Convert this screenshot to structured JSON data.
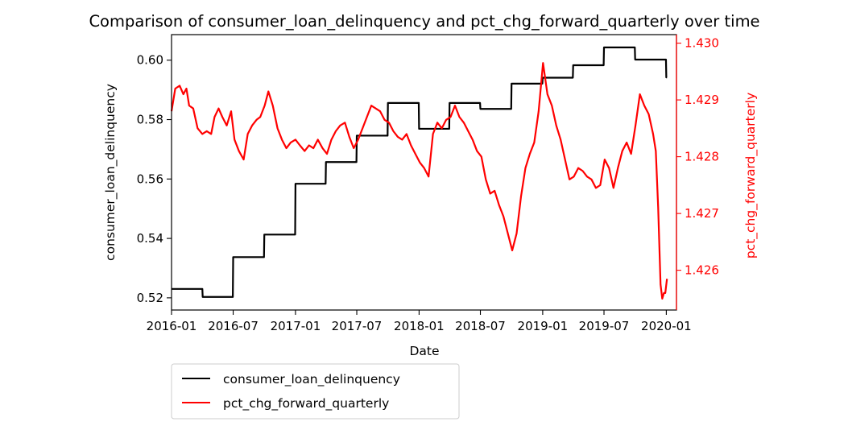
{
  "chart_data": {
    "type": "line",
    "title": "Comparison of consumer_loan_delinquency and pct_chg_forward_quarterly over time",
    "xlabel": "Date",
    "xlim": [
      "2016-01-01",
      "2020-01-31"
    ],
    "x_ticks": [
      "2016-01",
      "2016-07",
      "2017-01",
      "2017-07",
      "2018-01",
      "2018-07",
      "2019-01",
      "2019-07",
      "2020-01"
    ],
    "y_left": {
      "label": "consumer_loan_delinquency",
      "ylim": [
        0.5159,
        0.6086
      ],
      "ticks": [
        "0.52",
        "0.54",
        "0.56",
        "0.58",
        "0.60"
      ],
      "color": "#000000"
    },
    "y_right": {
      "label": "pct_chg_forward_quarterly",
      "ylim": [
        1.4253,
        1.43015
      ],
      "ticks": [
        "1.426",
        "1.427",
        "1.428",
        "1.429",
        "1.430"
      ],
      "color": "#ff0000"
    },
    "legend": {
      "placement": "below-left"
    },
    "series": [
      {
        "name": "consumer_loan_delinquency",
        "axis": "left",
        "color": "#000000",
        "points": [
          [
            "2016-01-01",
            0.523
          ],
          [
            "2016-04-01",
            0.523
          ],
          [
            "2016-04-02",
            0.5203
          ],
          [
            "2016-06-30",
            0.5203
          ],
          [
            "2016-07-01",
            0.5337
          ],
          [
            "2016-09-30",
            0.5337
          ],
          [
            "2016-10-01",
            0.5413
          ],
          [
            "2016-12-31",
            0.5413
          ],
          [
            "2017-01-01",
            0.5584
          ],
          [
            "2017-03-31",
            0.5584
          ],
          [
            "2017-04-01",
            0.5657
          ],
          [
            "2017-06-30",
            0.5657
          ],
          [
            "2017-07-01",
            0.5746
          ],
          [
            "2017-09-30",
            0.5746
          ],
          [
            "2017-10-01",
            0.5856
          ],
          [
            "2017-12-31",
            0.5856
          ],
          [
            "2018-01-01",
            0.5769
          ],
          [
            "2018-03-31",
            0.5769
          ],
          [
            "2018-04-01",
            0.5856
          ],
          [
            "2018-06-30",
            0.5856
          ],
          [
            "2018-07-01",
            0.5836
          ],
          [
            "2018-09-30",
            0.5836
          ],
          [
            "2018-10-01",
            0.5921
          ],
          [
            "2018-12-31",
            0.5921
          ],
          [
            "2019-01-01",
            0.5941
          ],
          [
            "2019-03-31",
            0.5941
          ],
          [
            "2019-04-01",
            0.5983
          ],
          [
            "2019-06-30",
            0.5983
          ],
          [
            "2019-07-01",
            0.6043
          ],
          [
            "2019-09-30",
            0.6043
          ],
          [
            "2019-10-01",
            0.6002
          ],
          [
            "2019-12-31",
            0.6002
          ],
          [
            "2020-01-01",
            0.5942
          ],
          [
            "2020-01-03",
            0.5942
          ]
        ]
      },
      {
        "name": "pct_chg_forward_quarterly",
        "axis": "right",
        "color": "#ff0000",
        "points": [
          [
            "2016-01-01",
            1.4288
          ],
          [
            "2016-01-12",
            1.4292
          ],
          [
            "2016-01-25",
            1.42925
          ],
          [
            "2016-02-05",
            1.4291
          ],
          [
            "2016-02-14",
            1.4292
          ],
          [
            "2016-02-22",
            1.4289
          ],
          [
            "2016-03-05",
            1.42885
          ],
          [
            "2016-03-18",
            1.4285
          ],
          [
            "2016-04-01",
            1.4284
          ],
          [
            "2016-04-14",
            1.42845
          ],
          [
            "2016-04-27",
            1.4284
          ],
          [
            "2016-05-07",
            1.4287
          ],
          [
            "2016-05-19",
            1.42885
          ],
          [
            "2016-05-30",
            1.4287
          ],
          [
            "2016-06-12",
            1.42855
          ],
          [
            "2016-06-25",
            1.4288
          ],
          [
            "2016-07-05",
            1.4283
          ],
          [
            "2016-07-18",
            1.4281
          ],
          [
            "2016-08-01",
            1.42795
          ],
          [
            "2016-08-13",
            1.4284
          ],
          [
            "2016-08-26",
            1.42855
          ],
          [
            "2016-09-08",
            1.42865
          ],
          [
            "2016-09-19",
            1.4287
          ],
          [
            "2016-10-02",
            1.4289
          ],
          [
            "2016-10-13",
            1.42915
          ],
          [
            "2016-10-26",
            1.4289
          ],
          [
            "2016-11-09",
            1.4285
          ],
          [
            "2016-11-22",
            1.4283
          ],
          [
            "2016-12-05",
            1.42815
          ],
          [
            "2016-12-18",
            1.42825
          ],
          [
            "2017-01-01",
            1.4283
          ],
          [
            "2017-01-14",
            1.4282
          ],
          [
            "2017-01-28",
            1.4281
          ],
          [
            "2017-02-10",
            1.4282
          ],
          [
            "2017-02-23",
            1.42815
          ],
          [
            "2017-03-08",
            1.4283
          ],
          [
            "2017-03-22",
            1.42815
          ],
          [
            "2017-04-04",
            1.42805
          ],
          [
            "2017-04-17",
            1.4283
          ],
          [
            "2017-04-30",
            1.42845
          ],
          [
            "2017-05-13",
            1.42855
          ],
          [
            "2017-05-27",
            1.4286
          ],
          [
            "2017-06-09",
            1.42835
          ],
          [
            "2017-06-22",
            1.42815
          ],
          [
            "2017-07-05",
            1.4283
          ],
          [
            "2017-07-18",
            1.4285
          ],
          [
            "2017-07-31",
            1.4287
          ],
          [
            "2017-08-13",
            1.4289
          ],
          [
            "2017-08-26",
            1.42885
          ],
          [
            "2017-09-08",
            1.4288
          ],
          [
            "2017-09-21",
            1.42865
          ],
          [
            "2017-10-04",
            1.4286
          ],
          [
            "2017-10-17",
            1.42845
          ],
          [
            "2017-10-30",
            1.42835
          ],
          [
            "2017-11-12",
            1.4283
          ],
          [
            "2017-11-25",
            1.4284
          ],
          [
            "2017-12-08",
            1.4282
          ],
          [
            "2017-12-21",
            1.42805
          ],
          [
            "2018-01-03",
            1.4279
          ],
          [
            "2018-01-16",
            1.4278
          ],
          [
            "2018-01-29",
            1.42765
          ],
          [
            "2018-02-11",
            1.4284
          ],
          [
            "2018-02-24",
            1.4286
          ],
          [
            "2018-03-09",
            1.4285
          ],
          [
            "2018-03-22",
            1.42865
          ],
          [
            "2018-04-04",
            1.4287
          ],
          [
            "2018-04-17",
            1.4289
          ],
          [
            "2018-04-30",
            1.4287
          ],
          [
            "2018-05-13",
            1.4286
          ],
          [
            "2018-05-26",
            1.42845
          ],
          [
            "2018-06-08",
            1.4283
          ],
          [
            "2018-06-21",
            1.4281
          ],
          [
            "2018-07-04",
            1.428
          ],
          [
            "2018-07-17",
            1.4276
          ],
          [
            "2018-07-30",
            1.42735
          ],
          [
            "2018-08-12",
            1.4274
          ],
          [
            "2018-08-25",
            1.42715
          ],
          [
            "2018-09-07",
            1.42695
          ],
          [
            "2018-09-20",
            1.42665
          ],
          [
            "2018-10-03",
            1.42635
          ],
          [
            "2018-10-16",
            1.42665
          ],
          [
            "2018-10-29",
            1.4273
          ],
          [
            "2018-11-11",
            1.4278
          ],
          [
            "2018-11-24",
            1.42805
          ],
          [
            "2018-12-07",
            1.42825
          ],
          [
            "2018-12-20",
            1.4288
          ],
          [
            "2019-01-02",
            1.42965
          ],
          [
            "2019-01-15",
            1.4291
          ],
          [
            "2019-01-28",
            1.4289
          ],
          [
            "2019-02-10",
            1.42855
          ],
          [
            "2019-02-23",
            1.4283
          ],
          [
            "2019-03-08",
            1.42795
          ],
          [
            "2019-03-21",
            1.4276
          ],
          [
            "2019-04-03",
            1.42765
          ],
          [
            "2019-04-16",
            1.4278
          ],
          [
            "2019-04-29",
            1.42775
          ],
          [
            "2019-05-12",
            1.42765
          ],
          [
            "2019-05-25",
            1.4276
          ],
          [
            "2019-06-07",
            1.42745
          ],
          [
            "2019-06-20",
            1.4275
          ],
          [
            "2019-07-03",
            1.42795
          ],
          [
            "2019-07-16",
            1.4278
          ],
          [
            "2019-07-29",
            1.42745
          ],
          [
            "2019-08-11",
            1.4278
          ],
          [
            "2019-08-24",
            1.4281
          ],
          [
            "2019-09-06",
            1.42825
          ],
          [
            "2019-09-19",
            1.42805
          ],
          [
            "2019-10-02",
            1.42855
          ],
          [
            "2019-10-15",
            1.4291
          ],
          [
            "2019-10-28",
            1.4289
          ],
          [
            "2019-11-10",
            1.42875
          ],
          [
            "2019-11-23",
            1.4284
          ],
          [
            "2019-12-01",
            1.4281
          ],
          [
            "2019-12-08",
            1.4271
          ],
          [
            "2019-12-15",
            1.42575
          ],
          [
            "2019-12-20",
            1.4255
          ],
          [
            "2019-12-25",
            1.4256
          ],
          [
            "2019-12-29",
            1.4256
          ],
          [
            "2020-01-03",
            1.42585
          ]
        ]
      }
    ]
  }
}
